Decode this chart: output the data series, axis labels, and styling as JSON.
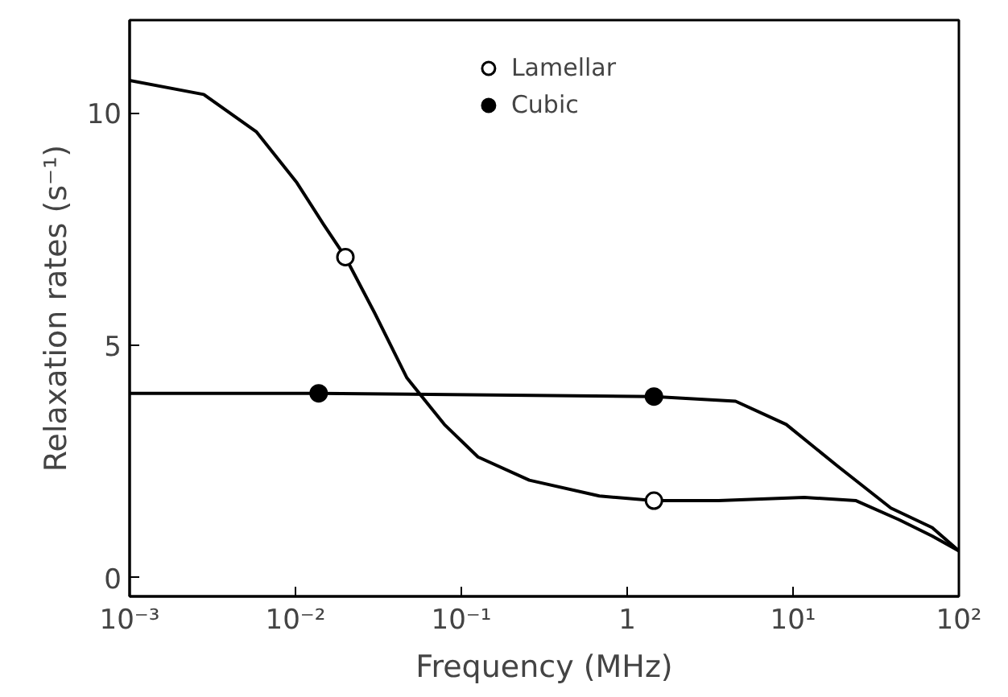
{
  "chart_data": {
    "type": "line",
    "xlabel": "Frequency (MHz)",
    "ylabel": "Relaxation rates (s⁻¹)",
    "log": "x",
    "xlim": [
      0.001,
      100
    ],
    "ylim": [
      -0.4,
      12
    ],
    "xticks": [
      {
        "value": 0.001,
        "label": "10⁻³"
      },
      {
        "value": 0.01,
        "label": "10⁻²"
      },
      {
        "value": 0.1,
        "label": "10⁻¹"
      },
      {
        "value": 1,
        "label": "1"
      },
      {
        "value": 10,
        "label": "10¹"
      },
      {
        "value": 100,
        "label": "10²"
      }
    ],
    "yticks": [
      0,
      5,
      10
    ],
    "grid": false,
    "legend": "top",
    "line_style": "solid",
    "series": [
      {
        "color": "#000000",
        "x": [
          0.001,
          0.0028,
          0.0058,
          0.0102,
          0.0148,
          0.02,
          0.03,
          0.047,
          0.079,
          0.126,
          0.257,
          0.68,
          1.45,
          3.55,
          11.7,
          24,
          43.6,
          69,
          100
        ],
        "values": [
          10.7,
          10.4,
          9.6,
          8.5,
          7.6,
          6.9,
          5.7,
          4.3,
          3.3,
          2.6,
          2.1,
          1.76,
          1.66,
          1.66,
          1.73,
          1.66,
          1.25,
          0.9,
          0.58
        ]
      },
      {
        "color": "#000000",
        "x": [
          0.001,
          0.0138,
          1.45,
          4.5,
          9.1,
          18.6,
          38.9,
          69,
          100
        ],
        "values": [
          3.97,
          3.97,
          3.9,
          3.8,
          3.3,
          2.4,
          1.5,
          1.08,
          0.58
        ]
      },
      {
        "type": "scatter",
        "name": "Lamellar",
        "color": "#ffffff",
        "marker": "circle",
        "x": [
          0.02,
          1.45
        ],
        "values": [
          6.9,
          1.66
        ]
      },
      {
        "type": "scatter",
        "name": "Cubic",
        "color": "#000000",
        "marker": "circle",
        "x": [
          0.0138,
          1.45
        ],
        "values": [
          3.97,
          3.9
        ]
      }
    ]
  }
}
